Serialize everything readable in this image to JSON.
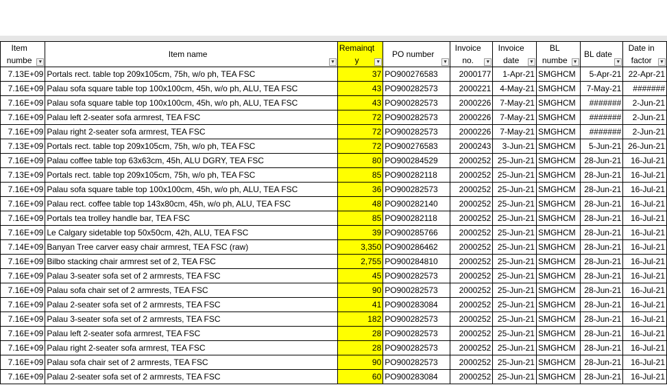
{
  "table": {
    "headers": [
      "Item numbe",
      "Item name",
      "Remainqt y",
      "PO number",
      "Invoice no.",
      "Invoice date",
      "BL numbe",
      "BL date",
      "Date in factor"
    ],
    "rows": [
      [
        "7.13E+09",
        "Portals rect. table top 209x105cm, 75h, w/o ph, TEA FSC",
        "37",
        "PO900276583",
        "2000177",
        "1-Apr-21",
        "SMGHCM",
        "5-Apr-21",
        "22-Apr-21"
      ],
      [
        "7.16E+09",
        "Palau sofa square table top 100x100cm, 45h, w/o ph, ALU, TEA FSC",
        "43",
        "PO900282573",
        "2000221",
        "4-May-21",
        "SMGHCM",
        "7-May-21",
        "#######"
      ],
      [
        "7.16E+09",
        "Palau sofa square table top 100x100cm, 45h, w/o ph, ALU, TEA FSC",
        "43",
        "PO900282573",
        "2000226",
        "7-May-21",
        "SMGHCM",
        "#######",
        "2-Jun-21"
      ],
      [
        "7.16E+09",
        "Palau left 2-seater sofa armrest, TEA FSC",
        "72",
        "PO900282573",
        "2000226",
        "7-May-21",
        "SMGHCM",
        "#######",
        "2-Jun-21"
      ],
      [
        "7.16E+09",
        "Palau right 2-seater sofa armrest, TEA FSC",
        "72",
        "PO900282573",
        "2000226",
        "7-May-21",
        "SMGHCM",
        "#######",
        "2-Jun-21"
      ],
      [
        "7.13E+09",
        "Portals rect. table top 209x105cm, 75h, w/o ph, TEA FSC",
        "72",
        "PO900276583",
        "2000243",
        "3-Jun-21",
        "SMGHCM",
        "5-Jun-21",
        "26-Jun-21"
      ],
      [
        "7.16E+09",
        "Palau coffee table top 63x63cm, 45h, ALU DGRY, TEA FSC",
        "80",
        "PO900284529",
        "2000252",
        "25-Jun-21",
        "SMGHCM",
        "28-Jun-21",
        "16-Jul-21"
      ],
      [
        "7.13E+09",
        "Portals rect. table top 209x105cm, 75h, w/o ph, TEA FSC",
        "85",
        "PO900282118",
        "2000252",
        "25-Jun-21",
        "SMGHCM",
        "28-Jun-21",
        "16-Jul-21"
      ],
      [
        "7.16E+09",
        "Palau sofa square table top 100x100cm, 45h, w/o ph, ALU, TEA FSC",
        "36",
        "PO900282573",
        "2000252",
        "25-Jun-21",
        "SMGHCM",
        "28-Jun-21",
        "16-Jul-21"
      ],
      [
        "7.16E+09",
        "Palau rect. coffee table top 143x80cm, 45h, w/o ph, ALU, TEA FSC",
        "48",
        "PO900282140",
        "2000252",
        "25-Jun-21",
        "SMGHCM",
        "28-Jun-21",
        "16-Jul-21"
      ],
      [
        "7.16E+09",
        "Portals tea trolley handle bar, TEA FSC",
        "85",
        "PO900282118",
        "2000252",
        "25-Jun-21",
        "SMGHCM",
        "28-Jun-21",
        "16-Jul-21"
      ],
      [
        "7.16E+09",
        "Le Calgary sidetable top 50x50cm, 42h, ALU, TEA FSC",
        "39",
        "PO900285766",
        "2000252",
        "25-Jun-21",
        "SMGHCM",
        "28-Jun-21",
        "16-Jul-21"
      ],
      [
        "7.14E+09",
        "Banyan Tree carver easy chair armrest, TEA FSC (raw)",
        "3,350",
        "PO900286462",
        "2000252",
        "25-Jun-21",
        "SMGHCM",
        "28-Jun-21",
        "16-Jul-21"
      ],
      [
        "7.16E+09",
        "Bilbo stacking chair armrest set of 2, TEA FSC",
        "2,755",
        "PO900284810",
        "2000252",
        "25-Jun-21",
        "SMGHCM",
        "28-Jun-21",
        "16-Jul-21"
      ],
      [
        "7.16E+09",
        "Palau 3-seater sofa set of 2 armrests, TEA FSC",
        "45",
        "PO900282573",
        "2000252",
        "25-Jun-21",
        "SMGHCM",
        "28-Jun-21",
        "16-Jul-21"
      ],
      [
        "7.16E+09",
        "Palau sofa chair set of 2 armrests, TEA FSC",
        "90",
        "PO900282573",
        "2000252",
        "25-Jun-21",
        "SMGHCM",
        "28-Jun-21",
        "16-Jul-21"
      ],
      [
        "7.16E+09",
        "Palau 2-seater sofa set of 2 armrests, TEA FSC",
        "41",
        "PO900283084",
        "2000252",
        "25-Jun-21",
        "SMGHCM",
        "28-Jun-21",
        "16-Jul-21"
      ],
      [
        "7.16E+09",
        "Palau 3-seater sofa set of 2 armrests, TEA FSC",
        "182",
        "PO900282573",
        "2000252",
        "25-Jun-21",
        "SMGHCM",
        "28-Jun-21",
        "16-Jul-21"
      ],
      [
        "7.16E+09",
        "Palau left 2-seater sofa armrest, TEA FSC",
        "28",
        "PO900282573",
        "2000252",
        "25-Jun-21",
        "SMGHCM",
        "28-Jun-21",
        "16-Jul-21"
      ],
      [
        "7.16E+09",
        "Palau right 2-seater sofa armrest, TEA FSC",
        "28",
        "PO900282573",
        "2000252",
        "25-Jun-21",
        "SMGHCM",
        "28-Jun-21",
        "16-Jul-21"
      ],
      [
        "7.16E+09",
        "Palau sofa chair set of 2 armrests, TEA FSC",
        "90",
        "PO900282573",
        "2000252",
        "25-Jun-21",
        "SMGHCM",
        "28-Jun-21",
        "16-Jul-21"
      ],
      [
        "7.16E+09",
        "Palau 2-seater sofa set of 2 armrests, TEA FSC",
        "60",
        "PO900283084",
        "2000252",
        "25-Jun-21",
        "SMGHCM",
        "28-Jun-21",
        "16-Jul-21"
      ]
    ]
  }
}
